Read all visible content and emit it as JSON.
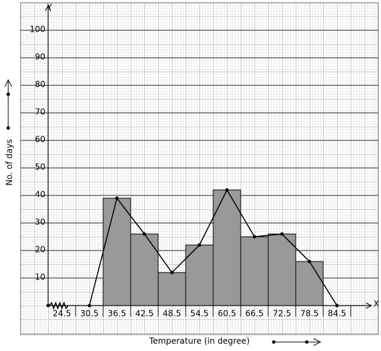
{
  "chart_data": {
    "type": "histogram",
    "bins": [
      30.5,
      36.5,
      42.5,
      48.5,
      54.5,
      60.5,
      66.5,
      72.5,
      78.5
    ],
    "counts": [
      39,
      26,
      12,
      22,
      42,
      25,
      26,
      16
    ],
    "color": "#999999",
    "polygon": {
      "x": [
        27.5,
        33.5,
        39.5,
        45.5,
        51.5,
        57.5,
        63.5,
        69.5,
        75.5,
        81.5
      ],
      "values": [
        0,
        39,
        26,
        12,
        22,
        42,
        25,
        26,
        16,
        0
      ],
      "color": "#000000"
    },
    "xlim": [
      18.5,
      87.5
    ],
    "ylim": [
      0,
      108
    ],
    "xticks": [
      24.5,
      30.5,
      36.5,
      42.5,
      48.5,
      54.5,
      60.5,
      66.5,
      72.5,
      78.5,
      84.5
    ],
    "yticks": [
      10,
      20,
      30,
      40,
      50,
      60,
      70,
      80,
      90,
      100
    ],
    "xlabel": "Temperature (in degree)",
    "ylabel": "No. of days",
    "x_axis_name": "X",
    "y_axis_name": "Y",
    "grid": true
  }
}
